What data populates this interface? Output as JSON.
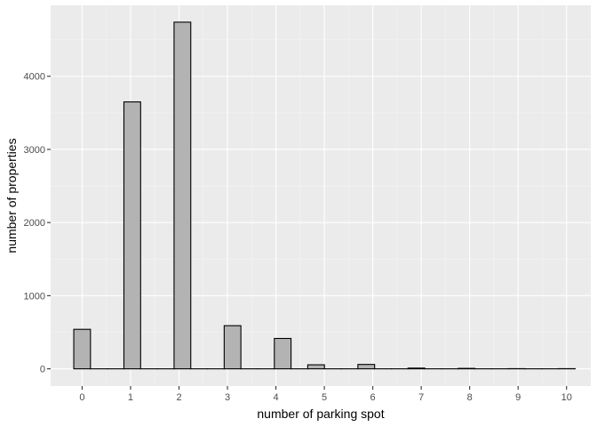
{
  "chart_data": {
    "type": "bar",
    "title": "",
    "xlabel": "number of parking spot",
    "ylabel": "number of properties",
    "x_ticks": [
      "0",
      "1",
      "2",
      "3",
      "4",
      "5",
      "6",
      "7",
      "8",
      "9",
      "10"
    ],
    "y_ticks": [
      "0",
      "1000",
      "2000",
      "3000",
      "4000"
    ],
    "xlim": [
      -0.65,
      10.5
    ],
    "ylim": [
      -236,
      4970
    ],
    "bar_width": 0.345,
    "bars": [
      {
        "x": 0,
        "value": 540
      },
      {
        "x": 0.345,
        "value": 0
      },
      {
        "x": 0.69,
        "value": 0
      },
      {
        "x": 1.035,
        "value": 3650
      },
      {
        "x": 1.38,
        "value": 0
      },
      {
        "x": 1.725,
        "value": 0
      },
      {
        "x": 2.07,
        "value": 4740
      },
      {
        "x": 2.415,
        "value": 0
      },
      {
        "x": 2.76,
        "value": 0
      },
      {
        "x": 3.105,
        "value": 590
      },
      {
        "x": 3.45,
        "value": 0
      },
      {
        "x": 3.795,
        "value": 0
      },
      {
        "x": 4.14,
        "value": 415
      },
      {
        "x": 4.485,
        "value": 0
      },
      {
        "x": 4.83,
        "value": 55
      },
      {
        "x": 5.175,
        "value": 0
      },
      {
        "x": 5.52,
        "value": 0
      },
      {
        "x": 5.865,
        "value": 60
      },
      {
        "x": 6.21,
        "value": 0
      },
      {
        "x": 6.555,
        "value": 0
      },
      {
        "x": 6.9,
        "value": 10
      },
      {
        "x": 7.245,
        "value": 0
      },
      {
        "x": 7.59,
        "value": 0
      },
      {
        "x": 7.935,
        "value": 6
      },
      {
        "x": 8.28,
        "value": 0
      },
      {
        "x": 8.625,
        "value": 0
      },
      {
        "x": 8.97,
        "value": 2
      },
      {
        "x": 9.315,
        "value": 0
      },
      {
        "x": 9.66,
        "value": 0
      },
      {
        "x": 10.005,
        "value": 2
      }
    ],
    "grid": true,
    "legend": "none",
    "colors": {
      "panel": "#ebebeb",
      "grid_major": "#ffffff",
      "grid_minor": "#f5f5f5",
      "bar_fill": "#b3b3b3",
      "bar_stroke": "#000000",
      "tick_text": "#4d4d4d",
      "tick_mark": "#333333"
    }
  }
}
